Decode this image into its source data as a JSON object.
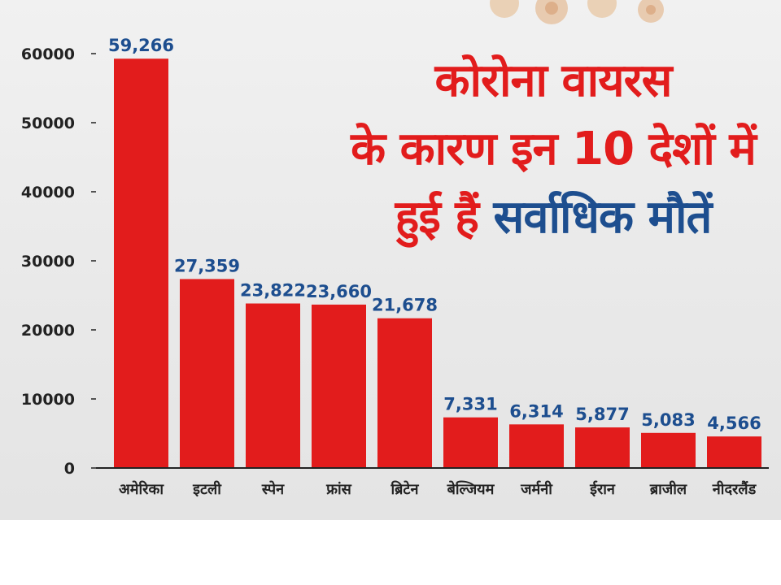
{
  "headline": {
    "line1": "कोरोना वायरस",
    "line2": "के कारण इन 10 देशों में",
    "line3_a": "हुई हैं",
    "line3_b": "सर्वाधिक मौतें"
  },
  "colors": {
    "bar": "#e21c1c",
    "value_label": "#1d4e8f",
    "headline_red": "#e21c1c",
    "headline_blue": "#1d4e8f",
    "axis": "#222222"
  },
  "chart_data": {
    "type": "bar",
    "categories": [
      "अमेरिका",
      "इटली",
      "स्पेन",
      "फ्रांस",
      "ब्रिटेन",
      "बेल्जियम",
      "जर्मनी",
      "ईरान",
      "ब्राजील",
      "नीदरलैंड"
    ],
    "values": [
      59266,
      27359,
      23822,
      23660,
      21678,
      7331,
      6314,
      5877,
      5083,
      4566
    ],
    "value_labels": [
      "59,266",
      "27,359",
      "23,822",
      "23,660",
      "21,678",
      "7,331",
      "6,314",
      "5,877",
      "5,083",
      "4,566"
    ],
    "y_ticks": [
      0,
      10000,
      20000,
      30000,
      40000,
      50000,
      60000
    ],
    "ylim": [
      0,
      60000
    ],
    "grid": false,
    "legend": "none"
  }
}
